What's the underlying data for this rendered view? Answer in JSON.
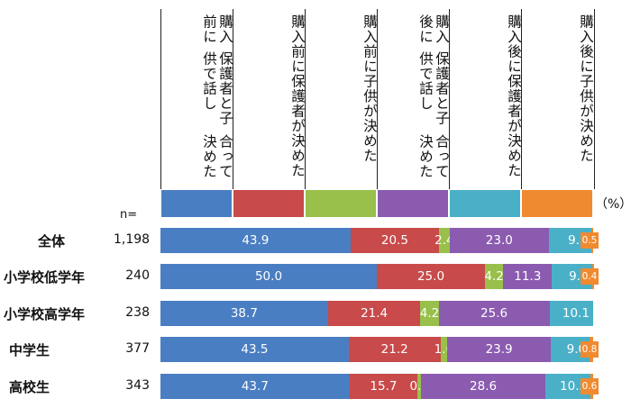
{
  "chart_data": {
    "type": "bar",
    "orientation": "horizontal-stacked",
    "unit_label": "（%）",
    "n_label": "n=",
    "series": [
      {
        "name": "購入前に保護者と子供で話し合って決めた",
        "color": "#4a7ec3"
      },
      {
        "name": "購入前に保護者が決めた",
        "color": "#c84a4a"
      },
      {
        "name": "購入前に子供が決めた",
        "color": "#98c04a"
      },
      {
        "name": "購入後に保護者と子供で話し合って決めた",
        "color": "#8b5bb0"
      },
      {
        "name": "購入後に保護者が決めた",
        "color": "#4ab0c8"
      },
      {
        "name": "購入後に子供が決めた",
        "color": "#f08a30"
      }
    ],
    "header_lines": [
      [
        "購入前に",
        "保護者と子供で話し",
        "合って決めた"
      ],
      [
        "購入前に",
        "保護者が決めた"
      ],
      [
        "購入前に",
        "子供が決めた"
      ],
      [
        "購入後に",
        "保護者と子供で話し",
        "合って決めた"
      ],
      [
        "購入後に",
        "保護者が決めた"
      ],
      [
        "購入後に",
        "子供が決めた"
      ]
    ],
    "rows": [
      {
        "category": "全体",
        "n": "1,198",
        "values": [
          43.9,
          20.5,
          2.4,
          23.0,
          9.7,
          0.5
        ],
        "labels": [
          "43.9",
          "20.5",
          "2.4",
          "23.0",
          "9.7",
          "0.5"
        ]
      },
      {
        "category": "小学校低学年",
        "n": "240",
        "values": [
          50.0,
          25.0,
          4.2,
          11.3,
          9.2,
          0.4
        ],
        "labels": [
          "50.0",
          "25.0",
          "4.2",
          "11.3",
          "9.2",
          "0.4"
        ]
      },
      {
        "category": "小学校高学年",
        "n": "238",
        "values": [
          38.7,
          21.4,
          4.2,
          25.6,
          10.1,
          0.0
        ],
        "labels": [
          "38.7",
          "21.4",
          "4.2",
          "25.6",
          "10.1",
          ""
        ]
      },
      {
        "category": "中学生",
        "n": "377",
        "values": [
          43.5,
          21.2,
          1.6,
          23.9,
          9.0,
          0.8
        ],
        "labels": [
          "43.5",
          "21.2",
          "1.6",
          "23.9",
          "9.0",
          "0.8"
        ]
      },
      {
        "category": "高校生",
        "n": "343",
        "values": [
          43.7,
          15.7,
          0.9,
          28.6,
          10.5,
          0.6
        ],
        "labels": [
          "43.7",
          "15.7",
          "0.9",
          "28.6",
          "10.5",
          "0.6"
        ]
      }
    ],
    "xlim": [
      0,
      100
    ]
  }
}
